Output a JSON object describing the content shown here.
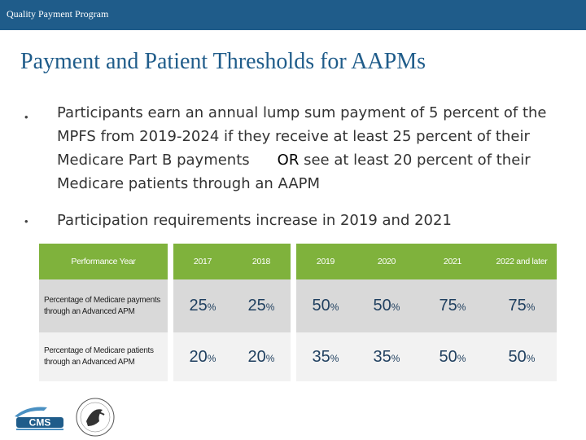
{
  "header": {
    "program_name": "Quality Payment Program"
  },
  "slide": {
    "title": "Payment and Patient Thresholds for AAPMs",
    "bullets": [
      {
        "marker": "•",
        "text_before": "Participants earn an annual lump sum payment of 5 percent of the MPFS from 2019-2024 if they receive at least 25 percent of their Medicare Part B payments",
        "emphasis": "OR",
        "text_after": " see at least 20 percent of their Medicare patients through an AAPM"
      },
      {
        "marker": "•",
        "text": "Participation requirements increase in 2019 and 2021"
      }
    ]
  },
  "table": {
    "header_label": "Performance Year",
    "years": [
      "2017",
      "2018",
      "2019",
      "2020",
      "2021",
      "2022 and later"
    ],
    "rows": [
      {
        "label": "Percentage of Medicare payments through an Advanced APM",
        "values": [
          "25",
          "25",
          "50",
          "50",
          "75",
          "75"
        ]
      },
      {
        "label": "Percentage of Medicare patients through an Advanced APM",
        "values": [
          "20",
          "20",
          "35",
          "35",
          "50",
          "50"
        ]
      }
    ],
    "unit": "%"
  },
  "footer": {
    "logo_text": "CMS"
  },
  "colors": {
    "header_bar": "#1f5c8a",
    "title": "#1f5c8a",
    "table_header": "#7fb23c",
    "highlight": "#767676"
  }
}
